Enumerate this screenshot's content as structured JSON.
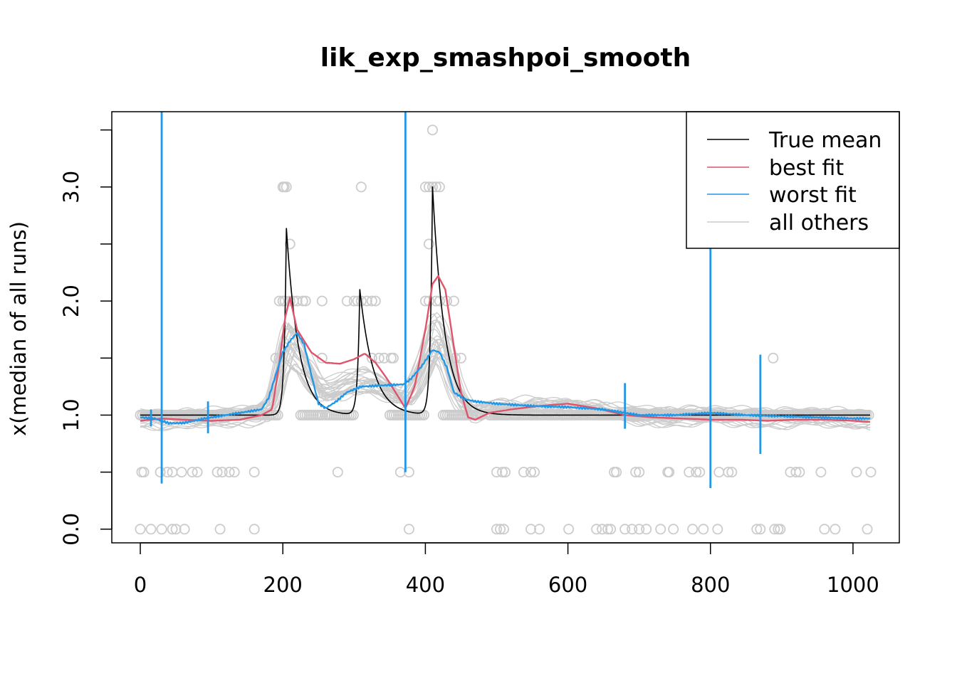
{
  "chart_data": {
    "type": "line",
    "title": "lik_exp_smashpoi_smooth",
    "xlabel": "",
    "ylabel": "x(median of all runs)",
    "xlim": [
      -40,
      1065
    ],
    "ylim": [
      -0.12,
      3.66
    ],
    "x_ticks": [
      0,
      200,
      400,
      600,
      800,
      1000
    ],
    "x_tick_labels": [
      "0",
      "200",
      "400",
      "600",
      "800",
      "1000"
    ],
    "y_ticks": [
      0,
      0.5,
      1,
      1.5,
      2,
      2.5,
      3,
      3.5
    ],
    "y_tick_labels": [
      "0.0",
      "",
      "1.0",
      "",
      "2.0",
      "",
      "3.0",
      ""
    ],
    "legend": {
      "position": "top-right",
      "entries": [
        {
          "label": "True mean",
          "color": "#000000"
        },
        {
          "label": "best fit",
          "color": "#DF536B"
        },
        {
          "label": "worst fit",
          "color": "#2297E6"
        },
        {
          "label": "all others",
          "color": "#CCCCCC"
        }
      ]
    },
    "true_mean": {
      "baseline": 1.0,
      "peaks": [
        {
          "x": 205,
          "height": 1.64,
          "rise": 3,
          "decay": 17
        },
        {
          "x": 308,
          "height": 1.1,
          "rise": 3,
          "decay": 19
        },
        {
          "x": 410,
          "height": 2.0,
          "rise": 3,
          "decay": 17
        }
      ]
    },
    "best_fit": {
      "x": [
        0,
        30,
        60,
        100,
        140,
        170,
        185,
        195,
        203,
        210,
        220,
        240,
        260,
        280,
        300,
        315,
        330,
        345,
        360,
        372,
        385,
        400,
        410,
        418,
        428,
        440,
        450,
        460,
        470,
        490,
        520,
        560,
        600,
        640,
        680,
        720,
        760,
        800,
        840,
        880,
        920,
        960,
        1000,
        1024
      ],
      "y": [
        0.95,
        0.97,
        0.96,
        0.95,
        0.96,
        1.0,
        1.05,
        1.45,
        1.85,
        2.03,
        1.75,
        1.55,
        1.46,
        1.45,
        1.49,
        1.54,
        1.46,
        1.33,
        1.18,
        1.06,
        1.25,
        1.75,
        2.15,
        2.22,
        2.1,
        1.6,
        1.2,
        0.98,
        0.96,
        1.02,
        1.05,
        1.08,
        1.1,
        1.06,
        1.0,
        0.98,
        0.97,
        0.96,
        0.96,
        0.95,
        0.96,
        0.96,
        0.95,
        0.94
      ]
    },
    "worst_fit": {
      "x": [
        0,
        20,
        40,
        60,
        90,
        120,
        150,
        170,
        180,
        190,
        200,
        210,
        220,
        230,
        240,
        250,
        260,
        275,
        290,
        310,
        340,
        370,
        380,
        395,
        410,
        420,
        430,
        440,
        455,
        470,
        500,
        550,
        600,
        650,
        700,
        750,
        800,
        850,
        900,
        950,
        1000,
        1024
      ],
      "y": [
        0.98,
        0.97,
        0.93,
        0.93,
        0.97,
        1.0,
        1.03,
        1.05,
        1.15,
        1.35,
        1.55,
        1.65,
        1.72,
        1.62,
        1.35,
        1.1,
        1.06,
        1.12,
        1.2,
        1.25,
        1.26,
        1.27,
        1.32,
        1.43,
        1.57,
        1.55,
        1.42,
        1.2,
        1.14,
        1.12,
        1.1,
        1.08,
        1.07,
        1.05,
        1.0,
        1.0,
        1.02,
        1.0,
        0.99,
        0.98,
        0.97,
        0.97
      ],
      "spikes": [
        {
          "x": 30,
          "top": 3.66,
          "bottom": 0.4
        },
        {
          "x": 372,
          "top": 3.66,
          "bottom": 0.5
        },
        {
          "x": 800,
          "top": 2.5,
          "bottom": 0.36
        },
        {
          "x": 870,
          "top": 1.53,
          "bottom": 0.66
        },
        {
          "x": 680,
          "top": 1.28,
          "bottom": 0.88
        },
        {
          "x": 95,
          "top": 1.12,
          "bottom": 0.84
        },
        {
          "x": 15,
          "top": 1.05,
          "bottom": 0.9
        }
      ]
    },
    "others_count": 28,
    "observations": {
      "x_zero": [
        0,
        15,
        30,
        45,
        50,
        62,
        112,
        160,
        377,
        500,
        505,
        510,
        548,
        560,
        601,
        640,
        648,
        656,
        660,
        680,
        690,
        700,
        710,
        730,
        748,
        775,
        790,
        810,
        865,
        870,
        890,
        895,
        898,
        960,
        975,
        1020
      ],
      "x_half": [
        2,
        5,
        28,
        38,
        45,
        58,
        73,
        80,
        108,
        115,
        125,
        132,
        160,
        277,
        365,
        377,
        500,
        508,
        512,
        538,
        548,
        553,
        665,
        668,
        695,
        700,
        740,
        742,
        770,
        780,
        785,
        812,
        825,
        830,
        912,
        920,
        925,
        955,
        1005,
        1025
      ],
      "x_onehalf": [
        190,
        195,
        255,
        325,
        335,
        342,
        352,
        355,
        442,
        450,
        888
      ],
      "x_two": [
        195,
        200,
        203,
        210,
        215,
        220,
        228,
        232,
        255,
        290,
        300,
        305,
        310,
        318,
        325,
        330,
        400,
        405,
        415,
        420,
        430,
        440
      ],
      "x_twohalf": [
        210,
        405
      ],
      "x_three": [
        200,
        202,
        205,
        310,
        400,
        405,
        410,
        415,
        420
      ],
      "x_threehalf": [
        410
      ],
      "x_one_band": [
        [
          0,
          80
        ],
        [
          80,
          160
        ],
        [
          160,
          195
        ],
        [
          225,
          255
        ],
        [
          260,
          300
        ],
        [
          350,
          400
        ],
        [
          425,
          480
        ],
        [
          490,
          650
        ],
        [
          650,
          1024
        ]
      ]
    }
  }
}
